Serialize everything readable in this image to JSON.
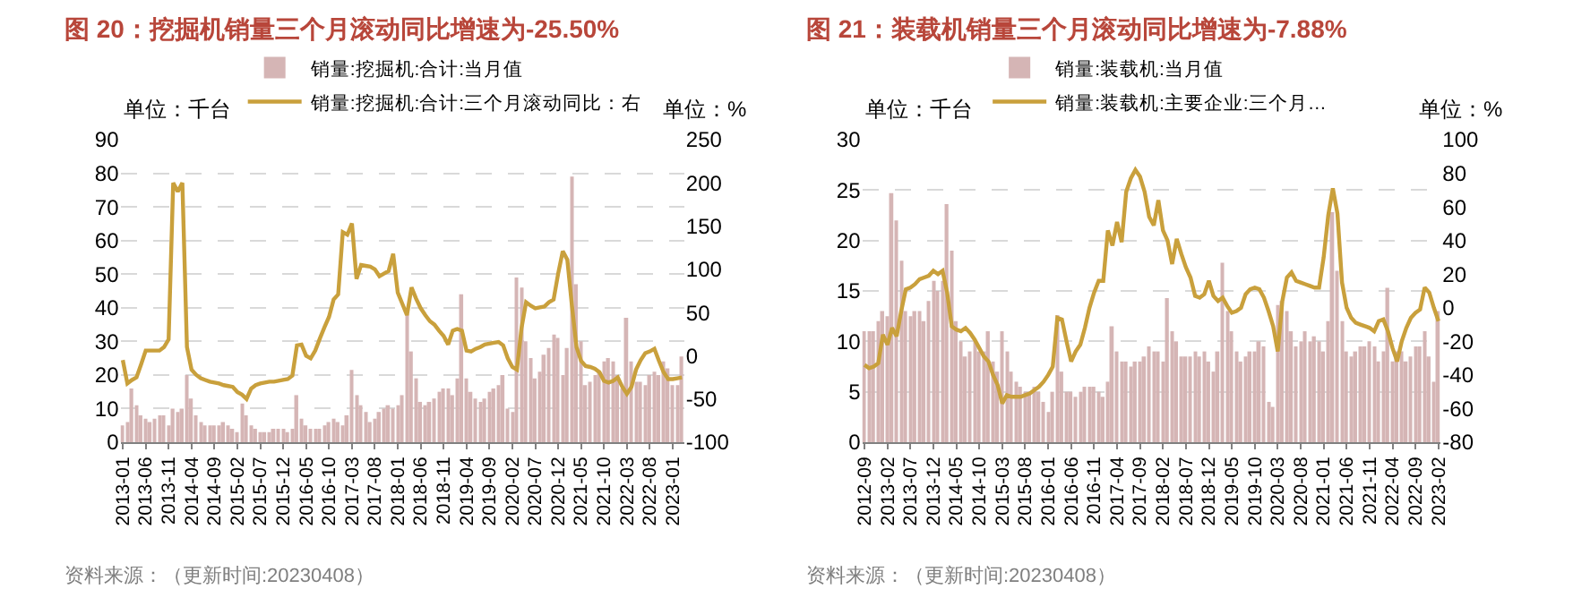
{
  "chart_data": [
    {
      "type": "bar",
      "title": "图 20：挖掘机销量三个月滚动同比增速为-25.50%",
      "ylabel": "单位：千台",
      "y2label": "单位：%",
      "categories": [
        "2013-01",
        null,
        null,
        null,
        null,
        "2013-06",
        null,
        null,
        null,
        null,
        "2013-11",
        null,
        null,
        null,
        null,
        "2014-04",
        null,
        null,
        null,
        null,
        "2014-09",
        null,
        null,
        null,
        null,
        "2015-02",
        null,
        null,
        null,
        null,
        "2015-07",
        null,
        null,
        null,
        null,
        "2015-12",
        null,
        null,
        null,
        null,
        "2016-05",
        null,
        null,
        null,
        null,
        "2016-10",
        null,
        null,
        null,
        null,
        "2017-03",
        null,
        null,
        null,
        null,
        "2017-08",
        null,
        null,
        null,
        null,
        "2018-01",
        null,
        null,
        null,
        null,
        "2018-06",
        null,
        null,
        null,
        null,
        "2018-11",
        null,
        null,
        null,
        null,
        "2019-04",
        null,
        null,
        null,
        null,
        "2019-09",
        null,
        null,
        null,
        null,
        "2020-02",
        null,
        null,
        null,
        null,
        "2020-07",
        null,
        null,
        null,
        null,
        "2020-12",
        null,
        null,
        null,
        null,
        "2021-05",
        null,
        null,
        null,
        null,
        "2021-10",
        null,
        null,
        null,
        null,
        "2022-03",
        null,
        null,
        null,
        null,
        "2022-08",
        null,
        null,
        null,
        null,
        "2023-01",
        null,
        null
      ],
      "series": [
        {
          "name": "销量:挖掘机:合计:当月值",
          "color": "#d5b5b5",
          "values": [
            5,
            6,
            16,
            11,
            8,
            7,
            6,
            7,
            8,
            8,
            5,
            10,
            9,
            10,
            20,
            13,
            8,
            6,
            5,
            5,
            5,
            5,
            6,
            5,
            4,
            3,
            11.5,
            8,
            5,
            4,
            3,
            3,
            3,
            4,
            4,
            4,
            3,
            4,
            14,
            7,
            5,
            4,
            4,
            4,
            5,
            6,
            7,
            6,
            5,
            8,
            21.5,
            14,
            11,
            9,
            6,
            7,
            9,
            10,
            11,
            10,
            11,
            14,
            38,
            27,
            19,
            12,
            11,
            12,
            13,
            15,
            16,
            16,
            14,
            19,
            44,
            19,
            15,
            13,
            12,
            13,
            15,
            16,
            17,
            20,
            10,
            9,
            49,
            46,
            30,
            25,
            19,
            21,
            26,
            28,
            32,
            31,
            20,
            28,
            79,
            47,
            30,
            17,
            18,
            20,
            21,
            24,
            25,
            24,
            20,
            16,
            37,
            24,
            18,
            18,
            17,
            20,
            21,
            20,
            24,
            22,
            17,
            17,
            25.5
          ]
        },
        {
          "name": "销量:挖掘机:合计:三个月滚动同比：右",
          "type": "line",
          "axis": "y2",
          "color": "#c9a03c",
          "values": [
            -5,
            -32,
            -28,
            -25,
            -10,
            6,
            6,
            6,
            6,
            10,
            19,
            200,
            190,
            200,
            10,
            -16,
            -22,
            -26,
            -28,
            -30,
            -31,
            -32,
            -34,
            -35,
            -36,
            -42,
            -45,
            -50,
            -38,
            -34,
            -32,
            -31,
            -30,
            -30,
            -29,
            -28,
            -27,
            -23,
            12,
            13,
            0,
            -3,
            6,
            20,
            33,
            45,
            65,
            71,
            143,
            140,
            153,
            89,
            105,
            104,
            103,
            100,
            92,
            95,
            98,
            118,
            73,
            60,
            47,
            79,
            66,
            55,
            47,
            40,
            36,
            29,
            23,
            13,
            29,
            31,
            29,
            6,
            5,
            8,
            10,
            13,
            14,
            15,
            16,
            12,
            -3,
            -13,
            -16,
            32,
            62,
            58,
            55,
            56,
            57,
            62,
            65,
            95,
            121,
            111,
            58,
            10,
            -6,
            -12,
            -13,
            -15,
            -19,
            -29,
            -31,
            -29,
            -25,
            -36,
            -44,
            -36,
            -16,
            -5,
            3,
            5,
            8,
            -6,
            -19,
            -27,
            -27,
            -26,
            -25
          ]
        }
      ],
      "ylim": [
        0,
        90
      ],
      "yticks": [
        0,
        10,
        20,
        30,
        40,
        50,
        60,
        70,
        80,
        90
      ],
      "y2lim": [
        -100,
        250
      ],
      "y2ticks": [
        -100,
        -50,
        0,
        50,
        100,
        150,
        200,
        250
      ],
      "grid": "y",
      "legend": "top",
      "marker": "none",
      "annotations": [
        "资料来源：（更新时间:20230408）"
      ]
    },
    {
      "type": "bar",
      "title": "图 21：装载机销量三个月滚动同比增速为-7.88%",
      "ylabel": "单位：千台",
      "y2label": "单位：%",
      "categories": [
        "2012-09",
        null,
        null,
        null,
        null,
        "2013-02",
        null,
        null,
        null,
        null,
        "2013-07",
        null,
        null,
        null,
        null,
        "2013-12",
        null,
        null,
        null,
        null,
        "2014-05",
        null,
        null,
        null,
        null,
        "2014-10",
        null,
        null,
        null,
        null,
        "2015-03",
        null,
        null,
        null,
        null,
        "2015-08",
        null,
        null,
        null,
        null,
        "2016-01",
        null,
        null,
        null,
        null,
        "2016-06",
        null,
        null,
        null,
        null,
        "2016-11",
        null,
        null,
        null,
        null,
        "2017-04",
        null,
        null,
        null,
        null,
        "2017-09",
        null,
        null,
        null,
        null,
        "2018-02",
        null,
        null,
        null,
        null,
        "2018-07",
        null,
        null,
        null,
        null,
        "2018-12",
        null,
        null,
        null,
        null,
        "2019-05",
        null,
        null,
        null,
        null,
        "2019-10",
        null,
        null,
        null,
        null,
        "2020-03",
        null,
        null,
        null,
        null,
        "2020-08",
        null,
        null,
        null,
        null,
        "2021-01",
        null,
        null,
        null,
        null,
        "2021-06",
        null,
        null,
        null,
        null,
        "2021-11",
        null,
        null,
        null,
        null,
        "2022-04",
        null,
        null,
        null,
        null,
        "2022-09",
        null,
        null,
        null,
        null,
        "2023-02"
      ],
      "series": [
        {
          "name": "销量:装载机:当月值",
          "color": "#d5b5b5",
          "values": [
            11,
            11,
            11,
            12,
            13,
            12.5,
            24.7,
            22,
            18,
            13,
            12.5,
            13,
            13,
            12,
            14,
            16,
            15,
            16,
            23.6,
            19,
            12,
            10,
            8.5,
            9,
            10,
            9,
            9,
            11,
            8,
            7,
            11,
            9,
            7,
            6,
            5.5,
            5,
            5,
            5.5,
            5,
            4,
            3,
            5,
            12.6,
            7,
            5,
            5,
            4.5,
            5,
            5.5,
            5.5,
            5.5,
            5,
            4.5,
            6,
            11.5,
            9,
            8,
            8,
            7.5,
            8,
            8,
            8.5,
            9.5,
            9,
            9,
            8,
            14.3,
            11,
            10,
            8.5,
            8.5,
            8.5,
            9,
            8.5,
            9,
            8,
            7,
            9,
            17.8,
            13,
            11,
            9,
            8,
            8.5,
            9,
            9,
            10,
            9.5,
            4,
            3.5,
            13.6,
            14,
            13,
            11,
            9.5,
            10,
            11,
            10,
            10.5,
            10,
            9,
            12,
            22.8,
            17,
            12,
            9,
            8.5,
            9,
            9.5,
            9.5,
            10,
            9.5,
            8,
            9,
            15.3,
            8,
            9,
            9,
            8,
            8.5,
            9.5,
            9.5,
            11,
            8.5,
            6,
            13
          ]
        },
        {
          "name": "销量:装载机:主要企业:三个月…",
          "type": "line",
          "axis": "y2",
          "color": "#c9a03c",
          "values": [
            -34,
            -36,
            -35,
            -33,
            -16,
            -22,
            -12,
            -17,
            -2,
            11,
            12,
            14,
            17,
            18,
            19,
            22,
            20,
            22,
            9,
            -11,
            -13,
            -14,
            -12,
            -15,
            -19,
            -24,
            -29,
            -32,
            -40,
            -46,
            -57,
            -52,
            -53,
            -53,
            -53,
            -52,
            -51,
            -49,
            -47,
            -44,
            -40,
            -35,
            -6,
            -7,
            -20,
            -32,
            -26,
            -22,
            -12,
            0,
            9,
            16,
            16,
            46,
            37,
            51,
            39,
            69,
            77,
            82,
            78,
            69,
            54,
            49,
            64,
            46,
            40,
            26,
            41,
            32,
            24,
            18,
            7,
            6,
            8,
            16,
            7,
            4,
            6,
            1,
            -3,
            -2,
            0,
            8,
            11,
            12,
            11,
            6,
            -2,
            -11,
            -26,
            4,
            18,
            21,
            16,
            15,
            14,
            13,
            12,
            12,
            30,
            55,
            71,
            56,
            15,
            0,
            -6,
            -9,
            -10,
            -11,
            -12,
            -14,
            -8,
            -7,
            -14,
            -24,
            -32,
            -20,
            -12,
            -6,
            -3,
            -1,
            12,
            9,
            0,
            -8
          ]
        }
      ],
      "ylim": [
        0,
        30
      ],
      "yticks": [
        0,
        5,
        10,
        15,
        20,
        25,
        30
      ],
      "y2lim": [
        -80,
        100
      ],
      "y2ticks": [
        -80,
        -60,
        -40,
        -20,
        0,
        20,
        40,
        60,
        80,
        100
      ],
      "grid": "y",
      "legend": "top",
      "marker": "none",
      "annotations": [
        "资料来源：（更新时间:20230408）"
      ]
    }
  ]
}
